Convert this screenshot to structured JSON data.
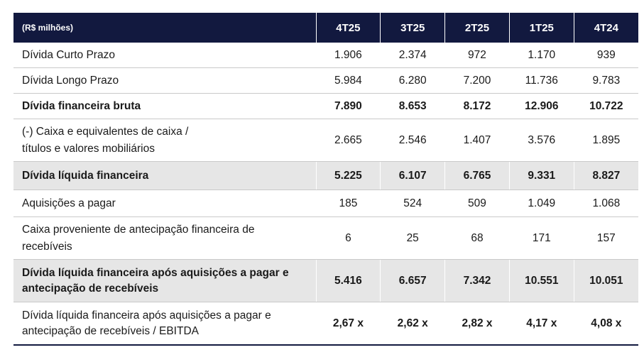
{
  "table": {
    "header": [
      "(R$ milhões)",
      "4T25",
      "3T25",
      "2T25",
      "1T25",
      "4T24"
    ],
    "rows": [
      {
        "label": "Dívida Curto Prazo",
        "values": [
          "1.906",
          "2.374",
          "972",
          "1.170",
          "939"
        ]
      },
      {
        "label": "Dívida Longo Prazo",
        "values": [
          "5.984",
          "6.280",
          "7.200",
          "11.736",
          "9.783"
        ]
      },
      {
        "label": "Dívida financeira bruta",
        "values": [
          "7.890",
          "8.653",
          "8.172",
          "12.906",
          "10.722"
        ]
      },
      {
        "label_lines": [
          "(-) Caixa e equivalentes de caixa /",
          "títulos e valores mobiliários"
        ],
        "values": [
          "2.665",
          "2.546",
          "1.407",
          "3.576",
          "1.895"
        ]
      },
      {
        "label": "Dívida líquida financeira",
        "values": [
          "5.225",
          "6.107",
          "6.765",
          "9.331",
          "8.827"
        ]
      },
      {
        "label": "Aquisições a pagar",
        "values": [
          "185",
          "524",
          "509",
          "1.049",
          "1.068"
        ]
      },
      {
        "label_lines": [
          "Caixa proveniente de antecipação financeira de",
          "recebíveis"
        ],
        "values": [
          "6",
          "25",
          "68",
          "171",
          "157"
        ]
      },
      {
        "label_lines": [
          "Dívida líquida financeira após aquisições a pagar e",
          "antecipação de recebíveis"
        ],
        "values": [
          "5.416",
          "6.657",
          "7.342",
          "10.551",
          "10.051"
        ]
      },
      {
        "label_lines": [
          "Dívida líquida financeira após aquisições a pagar e",
          "antecipação de recebíveis / EBITDA"
        ],
        "values": [
          "2,67 x",
          "2,62 x",
          "2,82 x",
          "4,17 x",
          "4,08 x"
        ]
      }
    ]
  },
  "colors": {
    "header_bg": "#12193f",
    "header_text": "#ffffff",
    "shaded_row": "#e6e6e6",
    "row_border": "#c9c9c9"
  }
}
